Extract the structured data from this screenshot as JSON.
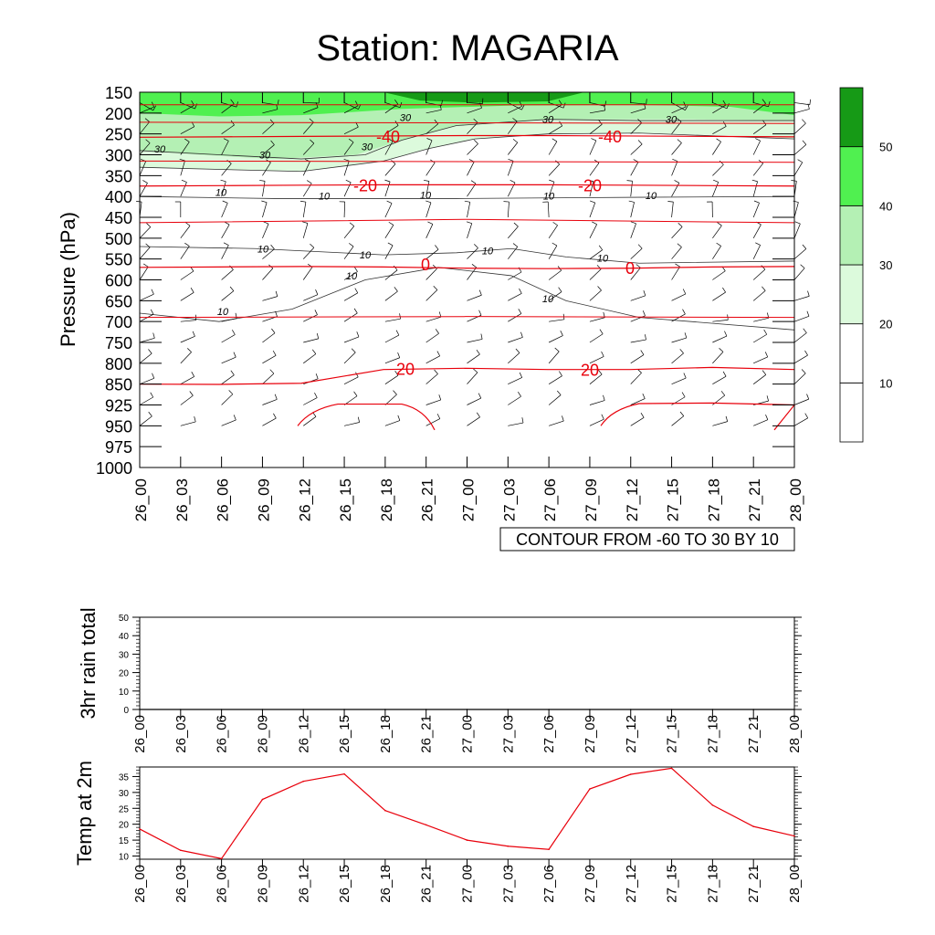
{
  "title": "Station: MAGARIA",
  "chart_data": [
    {
      "id": "pressure_time_section",
      "type": "contour",
      "ylabel": "Pressure (hPa)",
      "xlabel": "",
      "x_ticks": [
        "26_00",
        "26_03",
        "26_06",
        "26_09",
        "26_12",
        "26_15",
        "26_18",
        "26_21",
        "27_00",
        "27_03",
        "27_06",
        "27_09",
        "27_12",
        "27_15",
        "27_18",
        "27_21",
        "28_00"
      ],
      "y_ticks": [
        150,
        200,
        250,
        300,
        350,
        400,
        450,
        500,
        550,
        600,
        650,
        700,
        750,
        800,
        850,
        925,
        950,
        975,
        1000
      ],
      "info_label": "CONTOUR FROM -60 TO 30 BY 10",
      "fill_legend": {
        "levels": [
          10,
          20,
          30,
          40,
          50
        ],
        "colors": [
          "#ffffff",
          "#ffffff",
          "#dcfadc",
          "#b4f0b4",
          "#50f050",
          "#169a16"
        ]
      },
      "temperature_contours": [
        {
          "level": -40,
          "label": "-40",
          "pressure": [
            258,
            257,
            256,
            255,
            254,
            254,
            255,
            256,
            257
          ]
        },
        {
          "level": -20,
          "label": "-20",
          "pressure": [
            375,
            374,
            373,
            372,
            372,
            372,
            373,
            374,
            375
          ]
        },
        {
          "level": 0,
          "label": "0",
          "pressure": [
            570,
            569,
            568,
            569,
            572,
            573,
            572,
            569,
            568
          ]
        },
        {
          "level": 20,
          "label": "20",
          "pressure": [
            850,
            851,
            848,
            815,
            812,
            815,
            815,
            810,
            815
          ]
        }
      ],
      "contour_labels_red": [
        "-40",
        "-40",
        "-20",
        "-20",
        "0",
        "0",
        "20",
        "20"
      ],
      "contour_labels_black": [
        "30",
        "30",
        "30",
        "30",
        "30",
        "30",
        "10",
        "10",
        "10",
        "10",
        "10",
        "10",
        "10",
        "10",
        "10",
        "10",
        "10",
        "10"
      ]
    },
    {
      "id": "rain",
      "type": "line",
      "ylabel": "3hr rain total",
      "x": [
        "26_00",
        "26_03",
        "26_06",
        "26_09",
        "26_12",
        "26_15",
        "26_18",
        "26_21",
        "27_00",
        "27_03",
        "27_06",
        "27_09",
        "27_12",
        "27_15",
        "27_18",
        "27_21",
        "28_00"
      ],
      "values": [
        0,
        0,
        0,
        0,
        0,
        0,
        0,
        0,
        0,
        0,
        0,
        0,
        0,
        0,
        0,
        0,
        0
      ],
      "ylim": [
        0,
        50
      ],
      "y_ticks": [
        0,
        10,
        20,
        30,
        40,
        50
      ]
    },
    {
      "id": "temp2m",
      "type": "line",
      "ylabel": "Temp at 2m",
      "x": [
        "26_00",
        "26_03",
        "26_06",
        "26_09",
        "26_12",
        "26_15",
        "26_18",
        "26_21",
        "27_00",
        "27_03",
        "27_06",
        "27_09",
        "27_12",
        "27_15",
        "27_18",
        "27_21",
        "28_00"
      ],
      "values": [
        18.5,
        11.8,
        9.2,
        27.8,
        33.5,
        35.8,
        24.3,
        19.8,
        15.0,
        13.1,
        12.1,
        31.1,
        35.7,
        37.6,
        26.0,
        19.3,
        16.3
      ],
      "ylim": [
        9,
        38
      ],
      "y_ticks": [
        10,
        15,
        20,
        25,
        30,
        35
      ],
      "color": "#e8000b"
    }
  ]
}
